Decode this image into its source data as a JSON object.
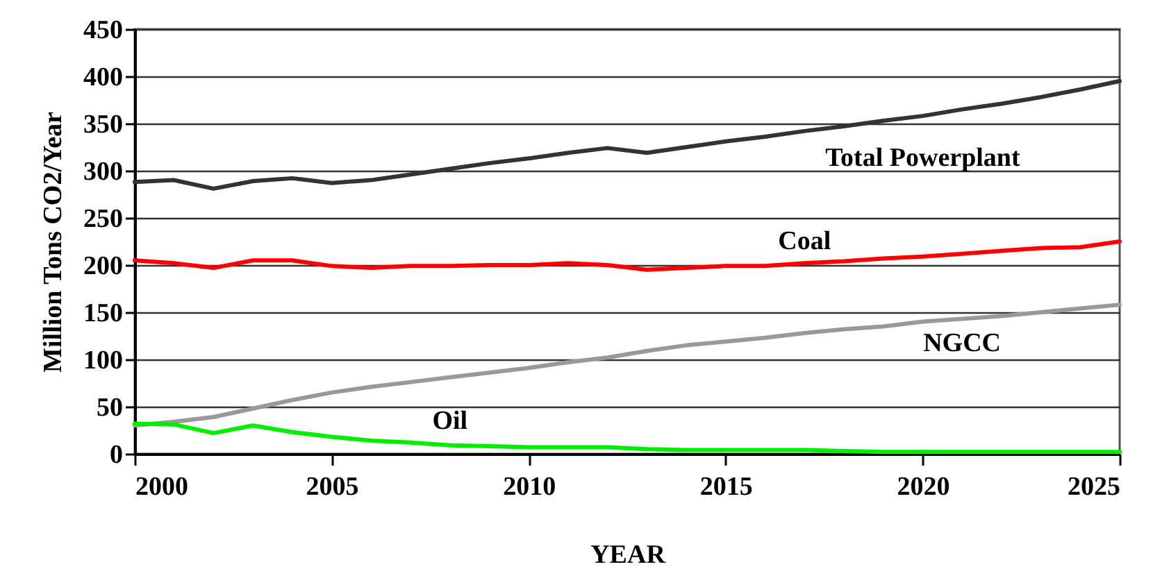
{
  "chart_data": {
    "type": "line",
    "xlabel": "YEAR",
    "ylabel": "Million Tons CO2/Year",
    "x": [
      2000,
      2001,
      2002,
      2003,
      2004,
      2005,
      2006,
      2007,
      2008,
      2009,
      2010,
      2011,
      2012,
      2013,
      2014,
      2015,
      2016,
      2017,
      2018,
      2019,
      2020,
      2021,
      2022,
      2023,
      2024,
      2025
    ],
    "series": [
      {
        "name": "Total Powerplant",
        "color": "#333333",
        "values": [
          288,
          290,
          281,
          289,
          292,
          287,
          290,
          296,
          302,
          308,
          313,
          319,
          324,
          319,
          325,
          331,
          336,
          342,
          347,
          353,
          358,
          365,
          371,
          378,
          386,
          395
        ]
      },
      {
        "name": "Coal",
        "color": "#ff0000",
        "values": [
          205,
          202,
          197,
          205,
          205,
          199,
          197,
          199,
          199,
          200,
          200,
          202,
          200,
          195,
          197,
          199,
          199,
          202,
          204,
          207,
          209,
          212,
          215,
          218,
          219,
          225
        ]
      },
      {
        "name": "NGCC",
        "color": "#999999",
        "values": [
          30,
          34,
          39,
          48,
          57,
          65,
          71,
          76,
          81,
          86,
          91,
          97,
          102,
          109,
          115,
          119,
          123,
          128,
          132,
          135,
          140,
          143,
          146,
          150,
          154,
          158
        ]
      },
      {
        "name": "Oil",
        "color": "#00ee00",
        "values": [
          32,
          31,
          22,
          30,
          23,
          18,
          14,
          12,
          9,
          8,
          7,
          7,
          7,
          5,
          4,
          4,
          4,
          4,
          3,
          2,
          2,
          2,
          2,
          2,
          2,
          2
        ]
      }
    ],
    "xlim": [
      2000,
      2025
    ],
    "xticks": [
      2000,
      2005,
      2010,
      2015,
      2020,
      2025
    ],
    "ylim": [
      0,
      450
    ],
    "yticks": [
      0,
      50,
      100,
      150,
      200,
      250,
      300,
      350,
      400,
      450
    ],
    "grid": "y",
    "legend": false,
    "marker": "none",
    "line_style": "solid"
  }
}
